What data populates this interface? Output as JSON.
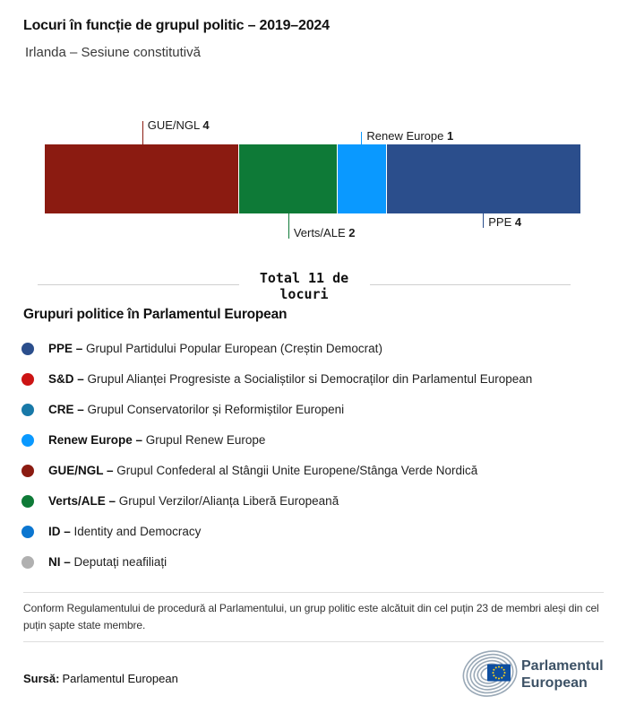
{
  "chart_data": {
    "type": "bar",
    "orientation": "horizontal-stacked",
    "title": "Locuri în funcție de grupul politic – 2019–2024",
    "subtitle": "Irlanda – Sesiune constitutivă",
    "total_seats": 11,
    "total_label": "Total 11 de locuri",
    "series": [
      {
        "name": "GUE/NGL",
        "value": 4,
        "color": "#8B1B11",
        "callout_side": "above",
        "tick_len": 26
      },
      {
        "name": "Verts/ALE",
        "value": 2,
        "color": "#0E7A37",
        "callout_side": "below",
        "tick_len": 28
      },
      {
        "name": "Renew Europe",
        "value": 1,
        "color": "#0A99FF",
        "callout_side": "above",
        "tick_len": 14
      },
      {
        "name": "PPE",
        "value": 4,
        "color": "#2B4E8C",
        "callout_side": "below",
        "tick_len": 16
      }
    ]
  },
  "legend": {
    "heading": "Grupuri politice în Parlamentul European",
    "groups": [
      {
        "abbr": "PPE –",
        "name": "Grupul Partidului Popular European (Creștin Democrat)",
        "color": "#2B4E8C"
      },
      {
        "abbr": "S&D –",
        "name": "Grupul Alianței Progresiste a Socialiștilor si Democraților din Parlamentul European",
        "color": "#CC1414"
      },
      {
        "abbr": "CRE –",
        "name": "Grupul Conservatorilor și Reformiștilor Europeni",
        "color": "#1879A8"
      },
      {
        "abbr": "Renew Europe –",
        "name": "Grupul Renew Europe",
        "color": "#0A99FF"
      },
      {
        "abbr": "GUE/NGL –",
        "name": "Grupul Confederal al Stângii Unite Europene/Stânga Verde Nordică",
        "color": "#8B1B11"
      },
      {
        "abbr": "Verts/ALE –",
        "name": "Grupul Verzilor/Alianța Liberă Europeană",
        "color": "#0E7A37"
      },
      {
        "abbr": "ID –",
        "name": "Identity and Democracy",
        "color": "#0B76D0"
      },
      {
        "abbr": "NI –",
        "name": "Deputați neafiliați",
        "color": "#B0B0B0"
      }
    ]
  },
  "footer": {
    "note": "Conform Regulamentului de procedură al Parlamentului, un grup politic este alcătuit din cel puțin 23 de membri aleși din cel puțin șapte state membre.",
    "source_label": "Sursă:",
    "source_value": "Parlamentul European"
  },
  "logo": {
    "line1": "Parlamentul",
    "line2": "European",
    "arc_gray": "#9AA9B7",
    "flag_blue": "#0D4EA0",
    "star_yellow": "#FFD617",
    "text_color": "#3D5266"
  }
}
